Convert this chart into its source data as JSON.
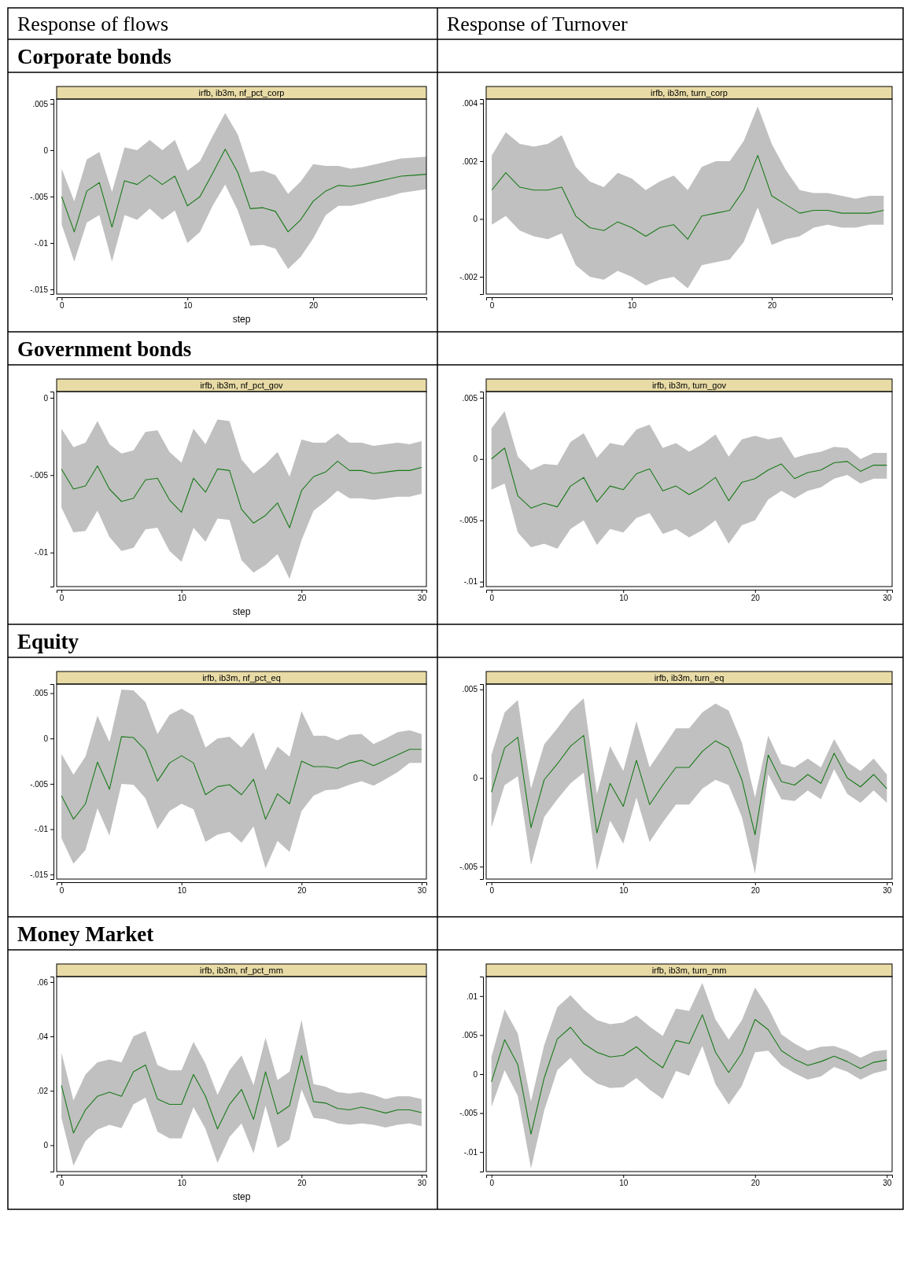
{
  "chart_data": [
    {
      "type": "other",
      "annotations": [
        "Response of flows",
        "Response of Turnover",
        "Corporate bonds",
        "Government bonds",
        "Equity",
        "Money Market"
      ]
    },
    {
      "type": "line",
      "title": "irfb, ib3m, nf_pct_corp",
      "xlabel": "step",
      "x": [
        0,
        1,
        2,
        3,
        4,
        5,
        6,
        7,
        8,
        9,
        10,
        11,
        12,
        13,
        14,
        15,
        16,
        17,
        18,
        19,
        20,
        21,
        22,
        23,
        24,
        25,
        26,
        27,
        28,
        29
      ],
      "xlim": [
        -0.4,
        29
      ],
      "xticks": [
        0,
        10,
        20
      ],
      "ylim": [
        -0.0155,
        0.0055
      ],
      "yticks": [
        {
          "value": 0.005,
          "label": ".005"
        },
        {
          "value": 0,
          "label": "0"
        },
        {
          "value": -0.005,
          "label": "-.005"
        },
        {
          "value": -0.01,
          "label": "-.01"
        },
        {
          "value": -0.015,
          "label": "-.015"
        }
      ],
      "series": [
        {
          "color": "#1a7a1a",
          "values": [
            -0.005,
            -0.0088,
            -0.0044,
            -0.0035,
            -0.0083,
            -0.0033,
            -0.0037,
            -0.0027,
            -0.0037,
            -0.0028,
            -0.006,
            -0.005,
            -0.0025,
            0.0001,
            -0.0024,
            -0.0063,
            -0.0062,
            -0.0066,
            -0.0088,
            -0.0075,
            -0.0055,
            -0.0044,
            -0.0038,
            -0.0039,
            -0.0037,
            -0.0034,
            -0.0031,
            -0.0028,
            -0.0027,
            -0.0026
          ],
          "upper": [
            -0.002,
            -0.0055,
            -0.001,
            -0.0002,
            -0.0045,
            0.0003,
            0,
            0.0011,
            0,
            0.0011,
            -0.0022,
            -0.0012,
            0.0015,
            0.004,
            0.0017,
            -0.0024,
            -0.0022,
            -0.0027,
            -0.0047,
            -0.0034,
            -0.0015,
            -0.0017,
            -0.0017,
            -0.002,
            -0.0018,
            -0.0015,
            -0.0012,
            -0.0009,
            -0.0008,
            -0.0007
          ],
          "lower": [
            -0.008,
            -0.012,
            -0.0078,
            -0.007,
            -0.012,
            -0.007,
            -0.0075,
            -0.0063,
            -0.0075,
            -0.0065,
            -0.01,
            -0.0088,
            -0.006,
            -0.0037,
            -0.0065,
            -0.0103,
            -0.0102,
            -0.0106,
            -0.0128,
            -0.0115,
            -0.0095,
            -0.007,
            -0.006,
            -0.006,
            -0.0057,
            -0.0053,
            -0.005,
            -0.0046,
            -0.0044,
            -0.0042
          ]
        }
      ]
    },
    {
      "type": "line",
      "title": "irfb, ib3m, turn_corp",
      "x": [
        0,
        1,
        2,
        3,
        4,
        5,
        6,
        7,
        8,
        9,
        10,
        11,
        12,
        13,
        14,
        15,
        16,
        17,
        18,
        19,
        20,
        21,
        22,
        23,
        24,
        25,
        26,
        27,
        28
      ],
      "xlim": [
        -0.4,
        28.6
      ],
      "xticks": [
        0,
        10,
        20
      ],
      "ylim": [
        -0.0026,
        0.00415
      ],
      "yticks": [
        {
          "value": 0.004,
          "label": ".004"
        },
        {
          "value": 0.002,
          "label": ".002"
        },
        {
          "value": 0,
          "label": "0"
        },
        {
          "value": -0.002,
          "label": "-.002"
        }
      ],
      "series": [
        {
          "color": "#1a7a1a",
          "values": [
            0.001,
            0.0016,
            0.0011,
            0.001,
            0.001,
            0.0011,
            0.0001,
            -0.0003,
            -0.0004,
            -0.0001,
            -0.0003,
            -0.0006,
            -0.0003,
            -0.0002,
            -0.0007,
            0.0001,
            0.0002,
            0.0003,
            0.001,
            0.0022,
            0.0008,
            0.0005,
            0.0002,
            0.0003,
            0.0003,
            0.0002,
            0.0002,
            0.0002,
            0.0003
          ],
          "upper": [
            0.0022,
            0.003,
            0.0026,
            0.0025,
            0.0026,
            0.0029,
            0.0018,
            0.0013,
            0.0011,
            0.0016,
            0.0014,
            0.001,
            0.0013,
            0.0015,
            0.001,
            0.0018,
            0.002,
            0.002,
            0.0027,
            0.0039,
            0.0026,
            0.0017,
            0.001,
            0.0009,
            0.0009,
            0.0008,
            0.0007,
            0.0008,
            0.0008
          ],
          "lower": [
            -0.0002,
            0.0001,
            -0.0004,
            -0.0006,
            -0.0007,
            -0.0005,
            -0.0016,
            -0.002,
            -0.0021,
            -0.0018,
            -0.002,
            -0.0023,
            -0.0021,
            -0.002,
            -0.0024,
            -0.0016,
            -0.0015,
            -0.0014,
            -0.0008,
            0.0004,
            -0.0009,
            -0.0007,
            -0.0006,
            -0.0003,
            -0.0002,
            -0.0003,
            -0.0003,
            -0.0002,
            -0.0002
          ]
        }
      ]
    },
    {
      "type": "line",
      "title": "irfb, ib3m, nf_pct_gov",
      "xlabel": "step",
      "x": [
        0,
        1,
        2,
        3,
        4,
        5,
        6,
        7,
        8,
        9,
        10,
        11,
        12,
        13,
        14,
        15,
        16,
        17,
        18,
        19,
        20,
        21,
        22,
        23,
        24,
        25,
        26,
        27,
        28,
        29,
        30
      ],
      "xlim": [
        -0.4,
        30.4
      ],
      "xticks": [
        0,
        10,
        20,
        30
      ],
      "ylim": [
        -0.0122,
        0.0004
      ],
      "yticks": [
        {
          "value": 0,
          "label": "0"
        },
        {
          "value": -0.005,
          "label": "-.005"
        },
        {
          "value": -0.01,
          "label": "-.01"
        }
      ],
      "series": [
        {
          "color": "#1a7a1a",
          "values": [
            -0.0046,
            -0.0059,
            -0.0057,
            -0.0044,
            -0.0059,
            -0.0067,
            -0.0065,
            -0.0053,
            -0.0052,
            -0.0066,
            -0.0074,
            -0.0052,
            -0.0061,
            -0.0046,
            -0.0047,
            -0.0072,
            -0.0081,
            -0.0076,
            -0.0068,
            -0.0084,
            -0.006,
            -0.0051,
            -0.0048,
            -0.0041,
            -0.0047,
            -0.0047,
            -0.0049,
            -0.0048,
            -0.0047,
            -0.0047,
            -0.0045
          ],
          "upper": [
            -0.002,
            -0.0032,
            -0.0029,
            -0.0015,
            -0.003,
            -0.0036,
            -0.0034,
            -0.0022,
            -0.0021,
            -0.0035,
            -0.0042,
            -0.002,
            -0.003,
            -0.0014,
            -0.0015,
            -0.004,
            -0.0049,
            -0.0043,
            -0.0035,
            -0.0051,
            -0.0027,
            -0.0029,
            -0.0029,
            -0.0023,
            -0.0029,
            -0.0029,
            -0.0031,
            -0.003,
            -0.0029,
            -0.003,
            -0.0028
          ],
          "lower": [
            -0.0071,
            -0.0087,
            -0.0086,
            -0.0073,
            -0.009,
            -0.0099,
            -0.0097,
            -0.0085,
            -0.0084,
            -0.0099,
            -0.0106,
            -0.0084,
            -0.0093,
            -0.0078,
            -0.0079,
            -0.0105,
            -0.0113,
            -0.0108,
            -0.0101,
            -0.0117,
            -0.0092,
            -0.0073,
            -0.0067,
            -0.006,
            -0.0065,
            -0.0065,
            -0.0066,
            -0.0065,
            -0.0064,
            -0.0064,
            -0.0062
          ]
        }
      ]
    },
    {
      "type": "line",
      "title": "irfb, ib3m, turn_gov",
      "x": [
        0,
        1,
        2,
        3,
        4,
        5,
        6,
        7,
        8,
        9,
        10,
        11,
        12,
        13,
        14,
        15,
        16,
        17,
        18,
        19,
        20,
        21,
        22,
        23,
        24,
        25,
        26,
        27,
        28,
        29,
        30
      ],
      "xlim": [
        -0.4,
        30.4
      ],
      "xticks": [
        0,
        10,
        20,
        30
      ],
      "ylim": [
        -0.0104,
        0.0055
      ],
      "yticks": [
        {
          "value": 0.005,
          "label": ".005"
        },
        {
          "value": 0,
          "label": "0"
        },
        {
          "value": -0.005,
          "label": "-.005"
        },
        {
          "value": -0.01,
          "label": "-.01"
        }
      ],
      "series": [
        {
          "color": "#1a7a1a",
          "values": [
            0,
            0.0009,
            -0.003,
            -0.004,
            -0.0036,
            -0.0039,
            -0.0022,
            -0.0015,
            -0.0035,
            -0.0022,
            -0.0025,
            -0.0012,
            -0.0008,
            -0.0026,
            -0.0022,
            -0.0029,
            -0.0023,
            -0.0015,
            -0.0034,
            -0.0019,
            -0.0016,
            -0.0009,
            -0.0004,
            -0.0016,
            -0.0011,
            -0.0009,
            -0.0003,
            -0.0002,
            -0.001,
            -0.0005,
            -0.0005
          ],
          "upper": [
            0.0025,
            0.0039,
            0.0002,
            -0.0009,
            -0.0004,
            -0.0005,
            0.0014,
            0.0021,
            0.0001,
            0.0013,
            0.0011,
            0.0024,
            0.0028,
            0.0009,
            0.0013,
            0.0006,
            0.0012,
            0.002,
            0.0002,
            0.0016,
            0.0019,
            0.0016,
            0.0018,
            0.0001,
            0.0004,
            0.0006,
            0.001,
            0.0009,
            0,
            0.0005,
            0.0005
          ],
          "lower": [
            -0.0025,
            -0.002,
            -0.006,
            -0.0072,
            -0.0069,
            -0.0073,
            -0.0057,
            -0.005,
            -0.007,
            -0.0057,
            -0.006,
            -0.0048,
            -0.0044,
            -0.0061,
            -0.0057,
            -0.0064,
            -0.0058,
            -0.005,
            -0.0069,
            -0.0054,
            -0.005,
            -0.0033,
            -0.0026,
            -0.0032,
            -0.0026,
            -0.0023,
            -0.0016,
            -0.0013,
            -0.002,
            -0.0016,
            -0.0016
          ]
        }
      ]
    },
    {
      "type": "line",
      "title": "irfb, ib3m, nf_pct_eq",
      "x": [
        0,
        1,
        2,
        3,
        4,
        5,
        6,
        7,
        8,
        9,
        10,
        11,
        12,
        13,
        14,
        15,
        16,
        17,
        18,
        19,
        20,
        21,
        22,
        23,
        24,
        25,
        26,
        27,
        28,
        29,
        30
      ],
      "xlim": [
        -0.4,
        30.4
      ],
      "xticks": [
        0,
        10,
        20,
        30
      ],
      "ylim": [
        -0.0155,
        0.006
      ],
      "yticks": [
        {
          "value": 0.005,
          "label": ".005"
        },
        {
          "value": 0,
          "label": "0"
        },
        {
          "value": -0.005,
          "label": "-.005"
        },
        {
          "value": -0.01,
          "label": "-.01"
        },
        {
          "value": -0.015,
          "label": "-.015"
        }
      ],
      "series": [
        {
          "color": "#1a7a1a",
          "values": [
            -0.0063,
            -0.0089,
            -0.0072,
            -0.0026,
            -0.0056,
            0.0002,
            0.0001,
            -0.0013,
            -0.0047,
            -0.0027,
            -0.0019,
            -0.0027,
            -0.0062,
            -0.0053,
            -0.0051,
            -0.0062,
            -0.0045,
            -0.0089,
            -0.0061,
            -0.0072,
            -0.0025,
            -0.0031,
            -0.0031,
            -0.0033,
            -0.0027,
            -0.0024,
            -0.003,
            -0.0024,
            -0.0018,
            -0.0012,
            -0.0012
          ],
          "upper": [
            -0.0017,
            -0.004,
            -0.002,
            0.0025,
            -0.0004,
            0.0054,
            0.0053,
            0.004,
            0.0005,
            0.0026,
            0.0033,
            0.0025,
            -0.001,
            0,
            0.0002,
            -0.001,
            0.0007,
            -0.0035,
            -0.0009,
            -0.002,
            0.003,
            0.0003,
            0.0003,
            -0.0002,
            0.0004,
            0.0005,
            -0.0006,
            0,
            0.0007,
            0.0009,
            0.0005
          ],
          "lower": [
            -0.011,
            -0.0138,
            -0.0123,
            -0.0077,
            -0.0107,
            -0.005,
            -0.0051,
            -0.0066,
            -0.01,
            -0.008,
            -0.0072,
            -0.0078,
            -0.0114,
            -0.0106,
            -0.0103,
            -0.0115,
            -0.0097,
            -0.0143,
            -0.0113,
            -0.0125,
            -0.008,
            -0.0063,
            -0.0057,
            -0.0056,
            -0.0051,
            -0.0047,
            -0.0052,
            -0.0045,
            -0.0037,
            -0.0027,
            -0.0027
          ]
        }
      ]
    },
    {
      "type": "line",
      "title": "irfb, ib3m, turn_eq",
      "x": [
        0,
        1,
        2,
        3,
        4,
        5,
        6,
        7,
        8,
        9,
        10,
        11,
        12,
        13,
        14,
        15,
        16,
        17,
        18,
        19,
        20,
        21,
        22,
        23,
        24,
        25,
        26,
        27,
        28,
        29,
        30
      ],
      "xlim": [
        -0.4,
        30.4
      ],
      "xticks": [
        0,
        10,
        20,
        30
      ],
      "ylim": [
        -0.0057,
        0.0053
      ],
      "yticks": [
        {
          "value": 0.005,
          "label": ".005"
        },
        {
          "value": 0,
          "label": "0"
        },
        {
          "value": -0.005,
          "label": "-.005"
        }
      ],
      "series": [
        {
          "color": "#1a7a1a",
          "values": [
            -0.0008,
            0.0017,
            0.0023,
            -0.0028,
            -0.0001,
            0.0008,
            0.0018,
            0.0024,
            -0.0031,
            -0.0003,
            -0.0016,
            0.001,
            -0.0015,
            -0.0004,
            0.0006,
            0.0006,
            0.0015,
            0.0021,
            0.0017,
            -0.0001,
            -0.0032,
            0.0013,
            -0.0002,
            -0.0004,
            0.0002,
            -0.0003,
            0.0014,
            0,
            -0.0005,
            0.0002,
            -0.0006
          ],
          "upper": [
            0.0013,
            0.0037,
            0.0044,
            -0.0006,
            0.0019,
            0.0028,
            0.0038,
            0.0045,
            -0.0009,
            0.0018,
            0.0004,
            0.0032,
            0.0006,
            0.0017,
            0.0028,
            0.0028,
            0.0037,
            0.0042,
            0.0038,
            0.002,
            -0.0011,
            0.0024,
            0.0008,
            0.0006,
            0.0011,
            0.0006,
            0.0022,
            0.0009,
            0.0004,
            0.0011,
            0.0002
          ],
          "lower": [
            -0.0028,
            -0.0004,
            0.0001,
            -0.0049,
            -0.0022,
            -0.0012,
            -0.0003,
            0.0003,
            -0.0052,
            -0.0024,
            -0.0037,
            -0.0011,
            -0.0036,
            -0.0025,
            -0.0015,
            -0.0015,
            -0.0006,
            -0.0001,
            -0.0004,
            -0.0022,
            -0.0054,
            0.0002,
            -0.0012,
            -0.0013,
            -0.0007,
            -0.0012,
            0.0005,
            -0.0009,
            -0.0014,
            -0.0007,
            -0.0014
          ]
        }
      ]
    },
    {
      "type": "line",
      "title": "irfb, ib3m, nf_pct_mm",
      "xlabel": "step",
      "x": [
        0,
        1,
        2,
        3,
        4,
        5,
        6,
        7,
        8,
        9,
        10,
        11,
        12,
        13,
        14,
        15,
        16,
        17,
        18,
        19,
        20,
        21,
        22,
        23,
        24,
        25,
        26,
        27,
        28,
        29,
        30
      ],
      "xlim": [
        -0.4,
        30.4
      ],
      "xticks": [
        0,
        10,
        20,
        30
      ],
      "ylim": [
        -0.0097,
        0.062
      ],
      "yticks": [
        {
          "value": 0.06,
          "label": ".06"
        },
        {
          "value": 0.04,
          "label": ".04"
        },
        {
          "value": 0.02,
          "label": ".02"
        },
        {
          "value": 0,
          "label": "0"
        }
      ],
      "series": [
        {
          "color": "#1a7a1a",
          "values": [
            0.022,
            0.0045,
            0.013,
            0.018,
            0.0195,
            0.018,
            0.027,
            0.0295,
            0.017,
            0.015,
            0.015,
            0.026,
            0.018,
            0.006,
            0.015,
            0.0205,
            0.0095,
            0.027,
            0.0115,
            0.0145,
            0.033,
            0.016,
            0.0155,
            0.0135,
            0.013,
            0.014,
            0.013,
            0.0118,
            0.013,
            0.013,
            0.012
          ],
          "upper": [
            0.034,
            0.0165,
            0.026,
            0.0305,
            0.0315,
            0.0305,
            0.04,
            0.042,
            0.0295,
            0.0275,
            0.0275,
            0.038,
            0.03,
            0.0185,
            0.0275,
            0.033,
            0.022,
            0.0395,
            0.024,
            0.027,
            0.046,
            0.0225,
            0.0215,
            0.0195,
            0.019,
            0.0195,
            0.0185,
            0.017,
            0.018,
            0.018,
            0.017
          ],
          "lower": [
            0.01,
            -0.0075,
            0.0015,
            0.0058,
            0.0075,
            0.0063,
            0.015,
            0.0175,
            0.005,
            0.0025,
            0.0025,
            0.014,
            0.006,
            -0.0065,
            0.003,
            0.008,
            -0.003,
            0.0145,
            -0.001,
            0.002,
            0.0205,
            0.01,
            0.0095,
            0.008,
            0.0075,
            0.008,
            0.0075,
            0.0065,
            0.0075,
            0.008,
            0.007
          ]
        }
      ]
    },
    {
      "type": "line",
      "title": "irfb, ib3m, turn_mm",
      "x": [
        0,
        1,
        2,
        3,
        4,
        5,
        6,
        7,
        8,
        9,
        10,
        11,
        12,
        13,
        14,
        15,
        16,
        17,
        18,
        19,
        20,
        21,
        22,
        23,
        24,
        25,
        26,
        27,
        28,
        29,
        30
      ],
      "xlim": [
        -0.4,
        30.4
      ],
      "xticks": [
        0,
        10,
        20,
        30
      ],
      "ylim": [
        -0.0125,
        0.0125
      ],
      "yticks": [
        {
          "value": 0.01,
          "label": ".01"
        },
        {
          "value": 0.005,
          "label": ".005"
        },
        {
          "value": 0,
          "label": "0"
        },
        {
          "value": -0.005,
          "label": "-.005"
        },
        {
          "value": -0.01,
          "label": "-.01"
        }
      ],
      "series": [
        {
          "color": "#1a7a1a",
          "values": [
            -0.001,
            0.0044,
            0.0012,
            -0.0077,
            -0.0005,
            0.0045,
            0.006,
            0.0039,
            0.0028,
            0.0022,
            0.0024,
            0.0035,
            0.002,
            0.0008,
            0.0043,
            0.0039,
            0.0076,
            0.0028,
            0.0002,
            0.0027,
            0.007,
            0.0057,
            0.003,
            0.0019,
            0.0011,
            0.0016,
            0.0023,
            0.0016,
            0.0007,
            0.0015,
            0.0018
          ],
          "upper": [
            0.0022,
            0.0083,
            0.0052,
            -0.0035,
            0.0037,
            0.0086,
            0.0101,
            0.0083,
            0.0069,
            0.0064,
            0.0066,
            0.0075,
            0.0061,
            0.0049,
            0.0084,
            0.0081,
            0.0117,
            0.007,
            0.0044,
            0.0069,
            0.0111,
            0.0085,
            0.0051,
            0.0039,
            0.003,
            0.0035,
            0.0036,
            0.003,
            0.0021,
            0.0029,
            0.0031
          ],
          "lower": [
            -0.0042,
            0.0005,
            -0.0028,
            -0.0121,
            -0.0047,
            0.0005,
            0.0021,
            0.0001,
            -0.0012,
            -0.0018,
            -0.0017,
            -0.0005,
            -0.002,
            -0.0032,
            0.0004,
            -0.0002,
            0.0036,
            -0.0013,
            -0.0039,
            -0.0015,
            0.0028,
            0.003,
            0.0011,
            0.0001,
            -0.0007,
            -0.0003,
            0.0009,
            0.0003,
            -0.0007,
            0.0001,
            0.0005
          ]
        }
      ]
    }
  ]
}
